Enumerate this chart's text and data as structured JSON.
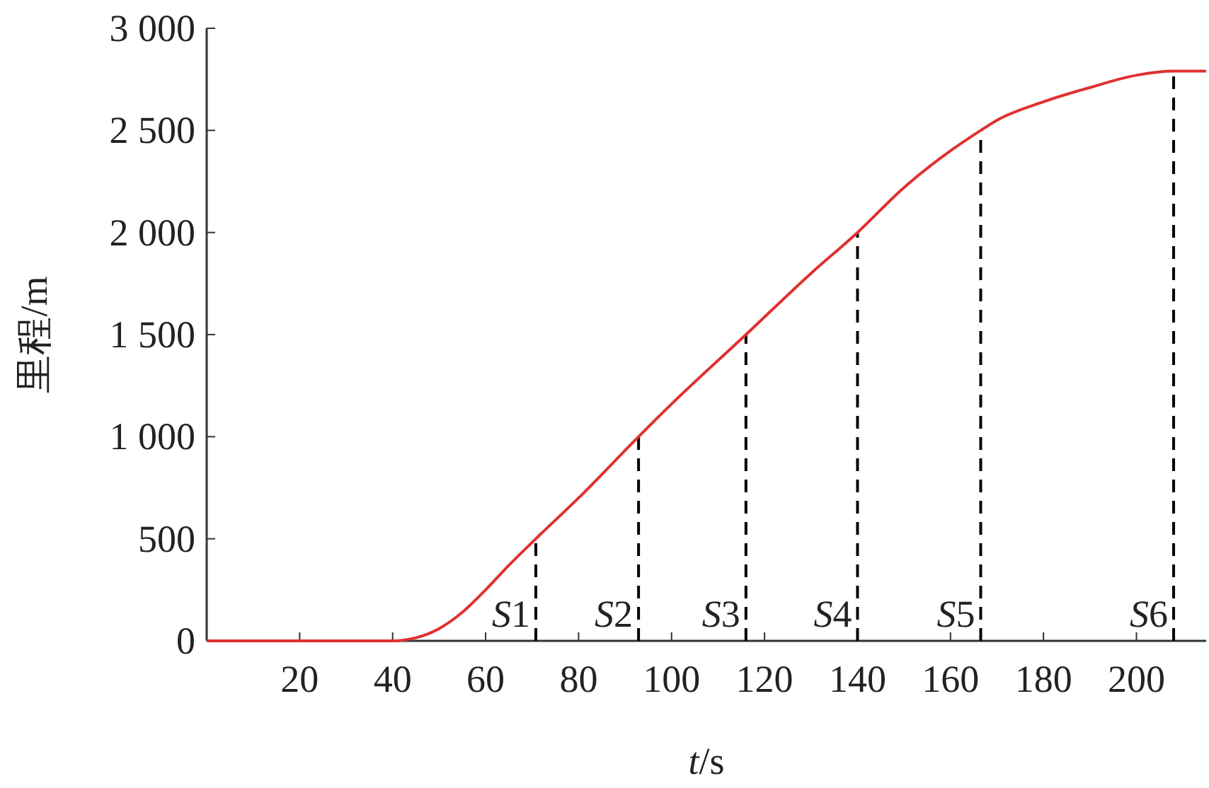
{
  "chart_data": {
    "type": "line",
    "xlabel": "t/s",
    "ylabel": "里程/m",
    "xlim": [
      0,
      215
    ],
    "ylim": [
      0,
      3000
    ],
    "xticks": [
      20,
      40,
      60,
      80,
      100,
      120,
      140,
      160,
      180,
      200
    ],
    "yticks": [
      0,
      500,
      {
        "value": 1000,
        "label": "1 000"
      },
      {
        "value": 1500,
        "label": "1 500"
      },
      {
        "value": 2000,
        "label": "2 000"
      },
      {
        "value": 2500,
        "label": "2 500"
      },
      {
        "value": 3000,
        "label": "3 000"
      }
    ],
    "grid": false,
    "marker": "none",
    "line_style": "solid",
    "series": [
      {
        "color": "#e03030",
        "x": [
          0,
          40,
          42,
          45,
          50,
          55,
          60,
          65,
          70.8,
          80,
          92.9,
          100,
          116,
          130,
          140,
          150,
          160,
          166.5,
          170,
          180,
          190,
          200,
          208,
          215
        ],
        "values": [
          0,
          0,
          3,
          15,
          60,
          140,
          250,
          370,
          500,
          700,
          1000,
          1160,
          1500,
          1800,
          2000,
          2220,
          2400,
          2500,
          2550,
          2640,
          2710,
          2770,
          2790,
          2790
        ]
      }
    ],
    "ref_lines": [
      {
        "axis": "x",
        "value": 70.8,
        "label": "S1",
        "color": "#000000",
        "line_style": "dashed"
      },
      {
        "axis": "x",
        "value": 92.9,
        "label": "S2",
        "color": "#000000",
        "line_style": "dashed"
      },
      {
        "axis": "x",
        "value": 116,
        "label": "S3",
        "color": "#000000",
        "line_style": "dashed"
      },
      {
        "axis": "x",
        "value": 140,
        "label": "S4",
        "color": "#000000",
        "line_style": "dashed"
      },
      {
        "axis": "x",
        "value": 166.5,
        "label": "S5",
        "color": "#000000",
        "line_style": "dashed"
      },
      {
        "axis": "x",
        "value": 208,
        "label": "S6",
        "color": "#000000",
        "line_style": "dashed"
      }
    ]
  }
}
